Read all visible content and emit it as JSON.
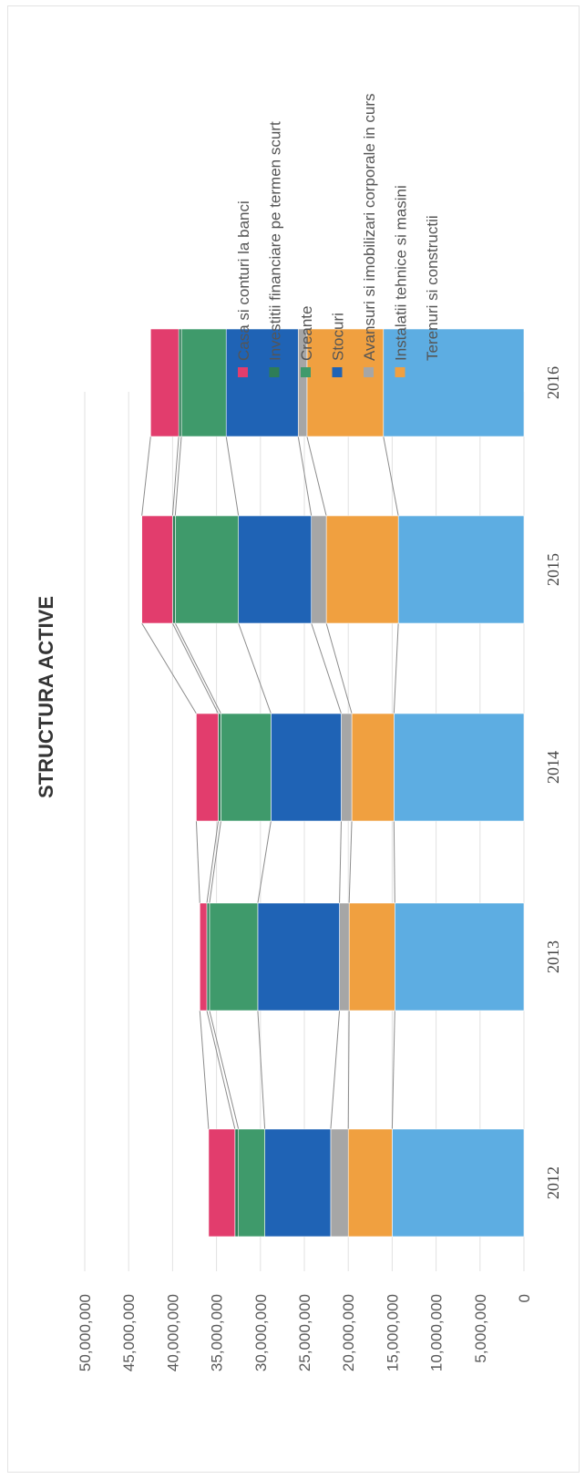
{
  "chart_data": {
    "type": "bar",
    "stacked": true,
    "orientation": "rotated-90",
    "title": "STRUCTURA ACTIVE",
    "categories": [
      "2012",
      "2013",
      "2014",
      "2015",
      "2016"
    ],
    "ylim": [
      0,
      50000000
    ],
    "yticks": [
      "0",
      "5,000,000",
      "10,000,000",
      "15,000,000",
      "20,000,000",
      "25,000,000",
      "30,000,000",
      "35,000,000",
      "40,000,000",
      "45,000,000",
      "50,000,000"
    ],
    "grid": true,
    "series_lines": true,
    "legend_position": "right",
    "series": [
      {
        "name": "Terenuri si constructii",
        "color": "#5DADE2",
        "values": [
          15000000,
          14700000,
          14800000,
          14300000,
          16000000
        ]
      },
      {
        "name": "Instalatii tehnice si masini",
        "color": "#F0A040",
        "values": [
          5000000,
          5200000,
          4800000,
          8200000,
          8700000
        ]
      },
      {
        "name": "Avansuri si imobilizari corporale in curs",
        "color": "#A6A6A6",
        "values": [
          2000000,
          1100000,
          1200000,
          1700000,
          1000000
        ]
      },
      {
        "name": "Stocuri",
        "color": "#1F63B5",
        "values": [
          7500000,
          9300000,
          8000000,
          8300000,
          8200000
        ]
      },
      {
        "name": "Creante",
        "color": "#3F9A6B",
        "values": [
          3000000,
          5500000,
          5700000,
          7200000,
          5100000
        ]
      },
      {
        "name": "Investitii financiare pe termen scurt",
        "color": "#2E7D57",
        "values": [
          400000,
          300000,
          300000,
          300000,
          300000
        ]
      },
      {
        "name": "Casa si conturi la banci",
        "color": "#E23D6D",
        "values": [
          3000000,
          800000,
          2500000,
          3500000,
          3200000
        ]
      }
    ]
  }
}
